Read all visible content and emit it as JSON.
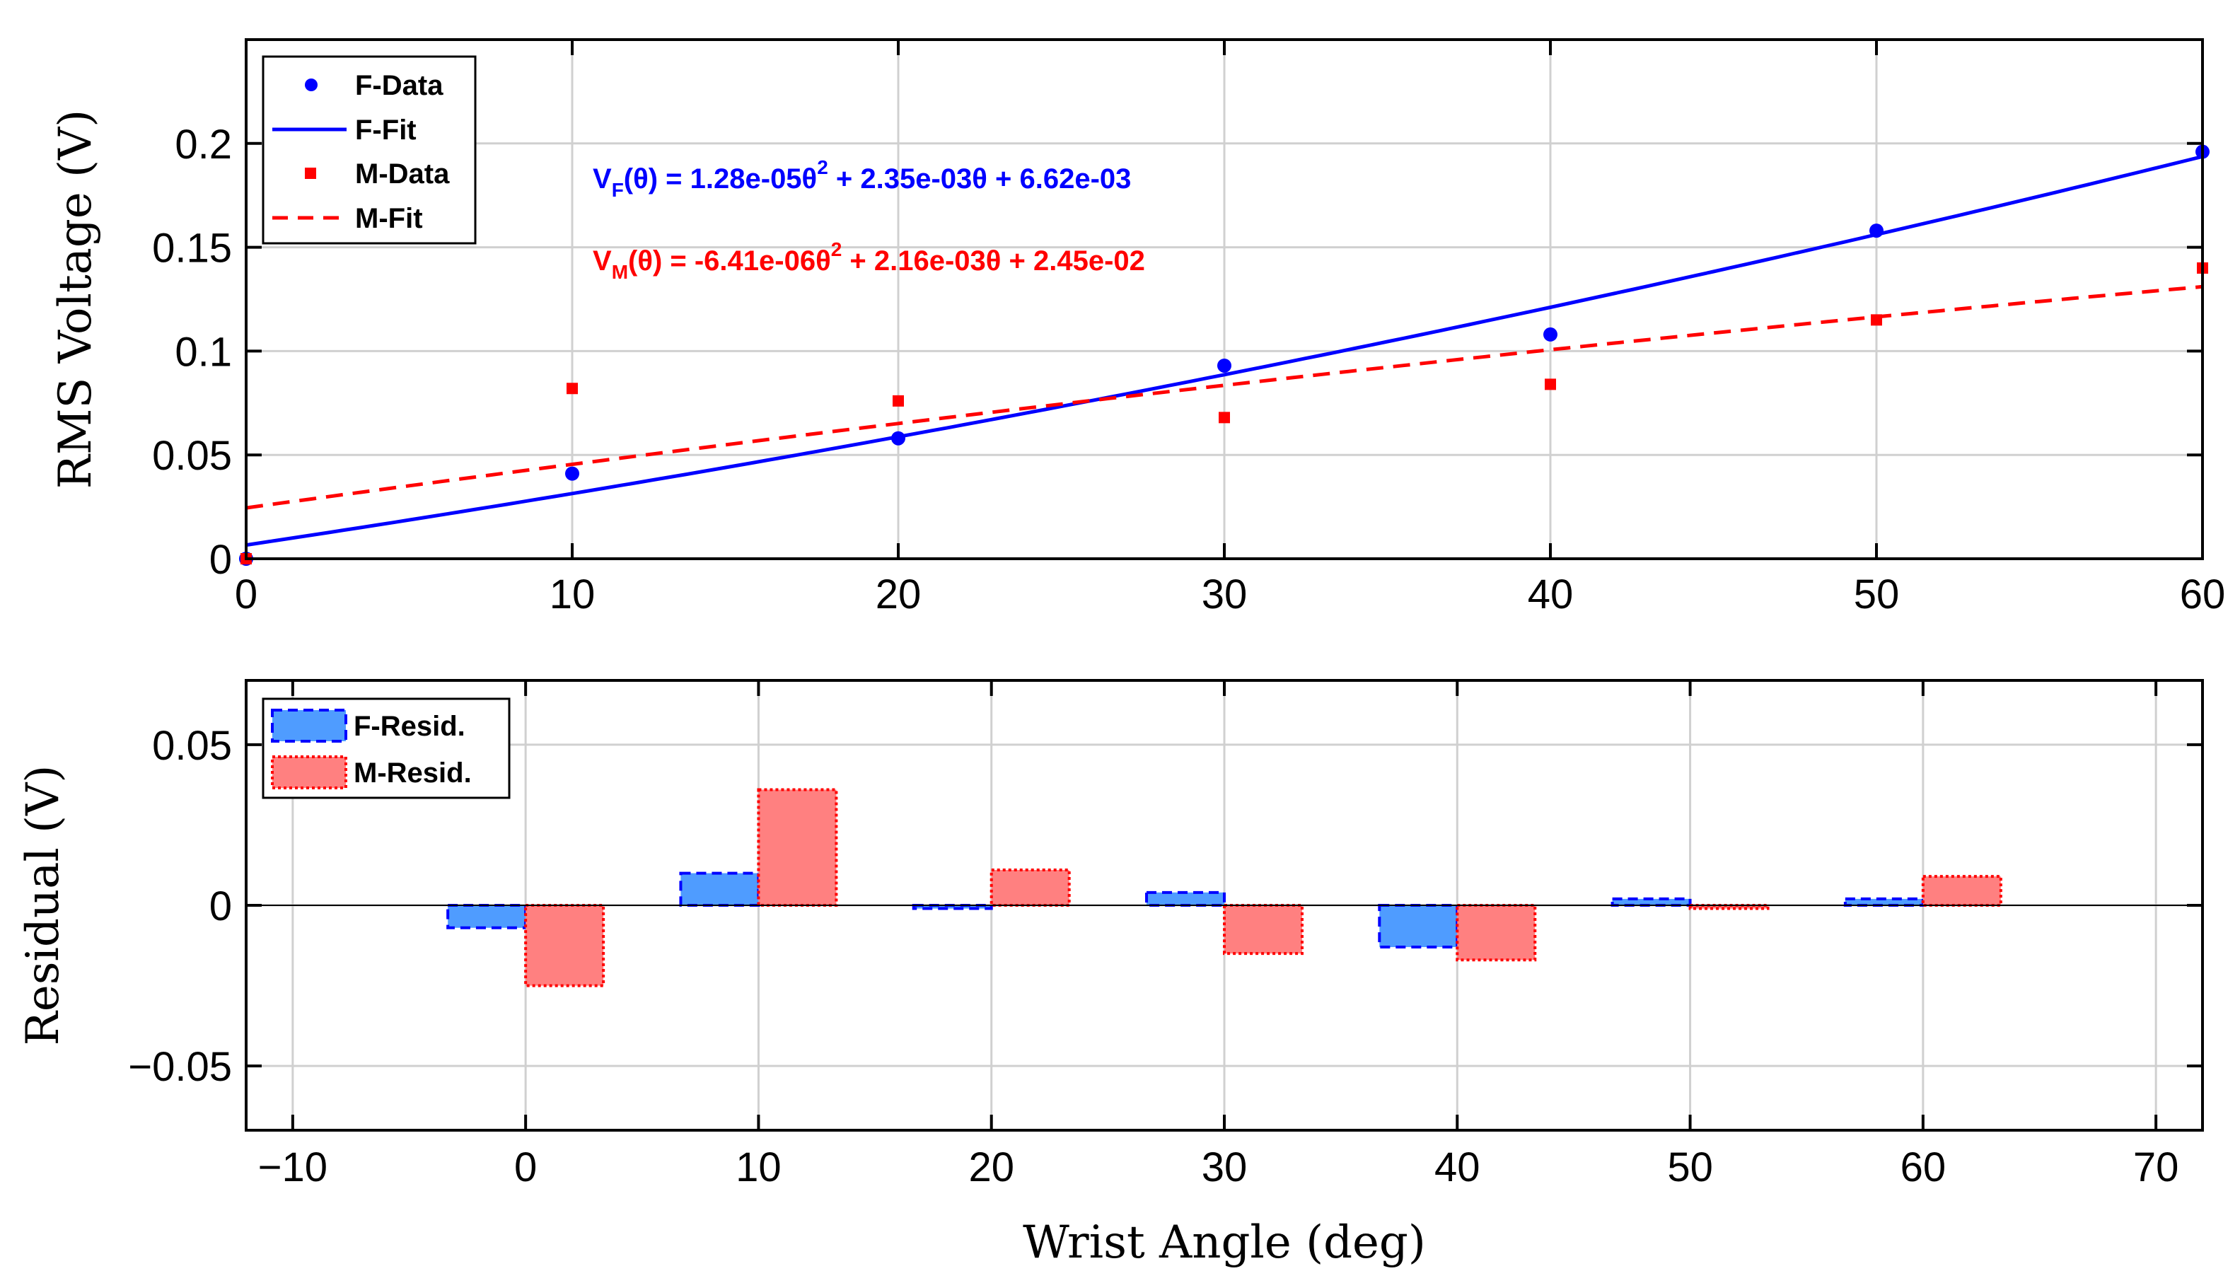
{
  "chart_data": [
    {
      "type": "line",
      "panel": "top",
      "xlabel": "",
      "ylabel": "RMS Voltage (V)",
      "xlim": [
        0,
        60
      ],
      "ylim": [
        0,
        0.25
      ],
      "x_ticks": [
        0,
        10,
        20,
        30,
        40,
        50,
        60
      ],
      "x_tick_labels": [
        "0",
        "10",
        "20",
        "30",
        "40",
        "50",
        "60"
      ],
      "y_ticks": [
        0,
        0.05,
        0.1,
        0.15,
        0.2
      ],
      "y_tick_labels": [
        "0",
        "0.05",
        "0.1",
        "0.15",
        "0.2"
      ],
      "grid": true,
      "legend_position": "top-left",
      "series": [
        {
          "name": "F-Data",
          "kind": "scatter",
          "marker": "circle",
          "color": "#0000ff",
          "x": [
            0,
            10,
            20,
            30,
            40,
            50,
            60
          ],
          "y": [
            0,
            0.041,
            0.058,
            0.093,
            0.108,
            0.158,
            0.196
          ]
        },
        {
          "name": "F-Fit",
          "kind": "curve",
          "style": "solid",
          "color": "#0000ff",
          "coefficients": [
            1.28e-05,
            0.00235,
            0.00662
          ]
        },
        {
          "name": "M-Data",
          "kind": "scatter",
          "marker": "square",
          "color": "#ff0000",
          "x": [
            0,
            10,
            20,
            30,
            40,
            50,
            60
          ],
          "y": [
            0,
            0.082,
            0.076,
            0.068,
            0.084,
            0.115,
            0.14
          ]
        },
        {
          "name": "M-Fit",
          "kind": "curve",
          "style": "dashed",
          "color": "#ff0000",
          "coefficients": [
            -6.41e-06,
            0.00216,
            0.0245
          ]
        }
      ],
      "annotations": [
        {
          "color": "#0000ff",
          "parts": [
            "V",
            "F",
            "(θ) = 1.28e-05θ",
            "2",
            " + 2.35e-03θ + 6.62e-03"
          ]
        },
        {
          "color": "#ff0000",
          "parts": [
            "V",
            "M",
            "(θ) = -6.41e-06θ",
            "2",
            " + 2.16e-03θ + 2.45e-02"
          ]
        }
      ]
    },
    {
      "type": "bar",
      "panel": "bottom",
      "xlabel": "Wrist Angle (deg)",
      "ylabel": "Residual (V)",
      "xlim": [
        -12,
        72
      ],
      "ylim": [
        -0.07,
        0.07
      ],
      "x_ticks": [
        -10,
        0,
        10,
        20,
        30,
        40,
        50,
        60,
        70
      ],
      "x_tick_labels": [
        "−10",
        "0",
        "10",
        "20",
        "30",
        "40",
        "50",
        "60",
        "70"
      ],
      "y_ticks": [
        -0.05,
        0,
        0.05
      ],
      "y_tick_labels": [
        "−0.05",
        "0",
        "0.05"
      ],
      "grid": true,
      "legend_position": "top-left",
      "categories": [
        0,
        10,
        20,
        30,
        40,
        50,
        60
      ],
      "series": [
        {
          "name": "F-Resid.",
          "color": "#4f9cff",
          "edge": "#0000ff",
          "values": [
            -0.007,
            0.01,
            -0.001,
            0.004,
            -0.013,
            0.002,
            0.002
          ]
        },
        {
          "name": "M-Resid.",
          "color": "#ff8080",
          "edge": "#ff0000",
          "values": [
            -0.025,
            0.036,
            0.011,
            -0.015,
            -0.017,
            -0.001,
            0.009
          ]
        }
      ]
    }
  ]
}
